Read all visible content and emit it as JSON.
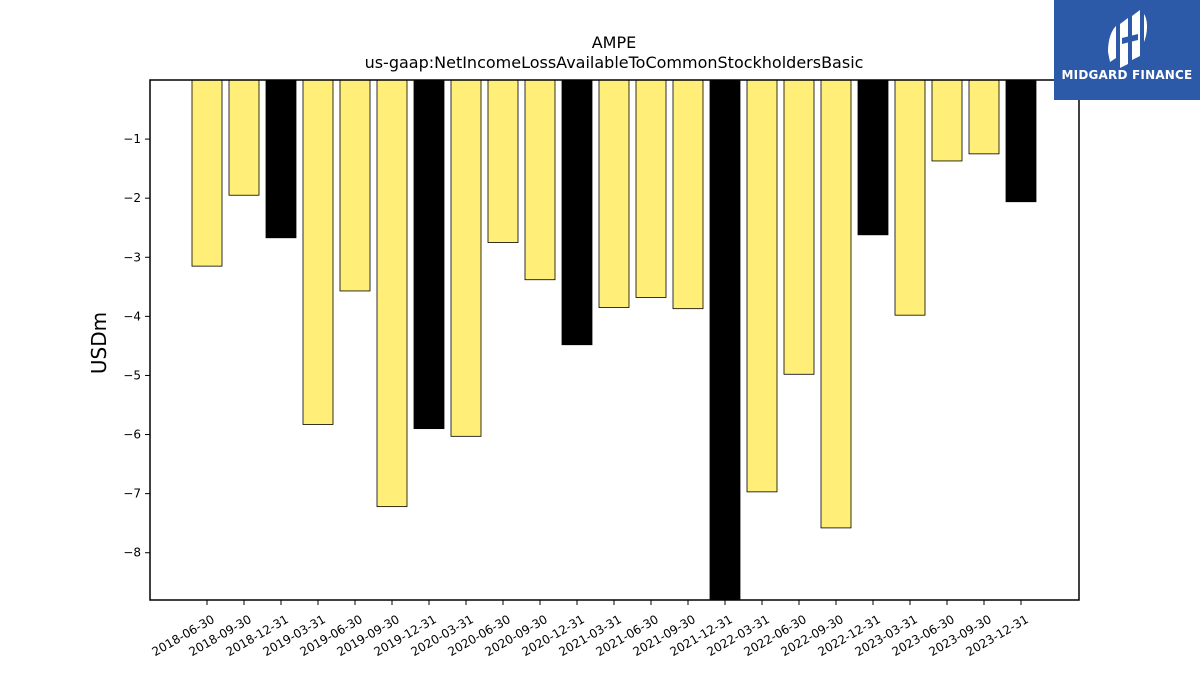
{
  "brand": {
    "name": "MIDGARD FINANCE",
    "bg_color": "#2c5aa8"
  },
  "chart_data": {
    "type": "bar",
    "title": "AMPE",
    "subtitle": "us-gaap:NetIncomeLossAvailableToCommonStockholdersBasic",
    "xlabel": "",
    "ylabel": "USDm",
    "ylim": [
      -8.8,
      0
    ],
    "yticks": [
      -1,
      -2,
      -3,
      -4,
      -5,
      -6,
      -7,
      -8
    ],
    "ytick_labels": [
      "−1",
      "−2",
      "−3",
      "−4",
      "−5",
      "−6",
      "−7",
      "−8"
    ],
    "categories": [
      "2018-06-30",
      "2018-09-30",
      "2018-12-31",
      "2019-03-31",
      "2019-06-30",
      "2019-09-30",
      "2019-12-31",
      "2020-03-31",
      "2020-06-30",
      "2020-09-30",
      "2020-12-31",
      "2021-03-31",
      "2021-06-30",
      "2021-09-30",
      "2021-12-31",
      "2022-03-31",
      "2022-06-30",
      "2022-09-30",
      "2022-12-31",
      "2023-03-31",
      "2023-06-30",
      "2023-09-30",
      "2023-12-31"
    ],
    "values": [
      -3.15,
      -1.95,
      -2.67,
      -5.83,
      -3.57,
      -7.22,
      -5.9,
      -6.03,
      -2.75,
      -3.38,
      -4.48,
      -3.85,
      -3.68,
      -3.87,
      -8.8,
      -6.97,
      -4.98,
      -7.58,
      -2.62,
      -3.98,
      -1.37,
      -1.25,
      -2.06
    ],
    "bar_colors": [
      "#ffee77",
      "#ffee77",
      "#000000",
      "#ffee77",
      "#ffee77",
      "#ffee77",
      "#000000",
      "#ffee77",
      "#ffee77",
      "#ffee77",
      "#000000",
      "#ffee77",
      "#ffee77",
      "#ffee77",
      "#000000",
      "#ffee77",
      "#ffee77",
      "#ffee77",
      "#000000",
      "#ffee77",
      "#ffee77",
      "#ffee77",
      "#000000"
    ],
    "grid": false,
    "legend": "none"
  }
}
